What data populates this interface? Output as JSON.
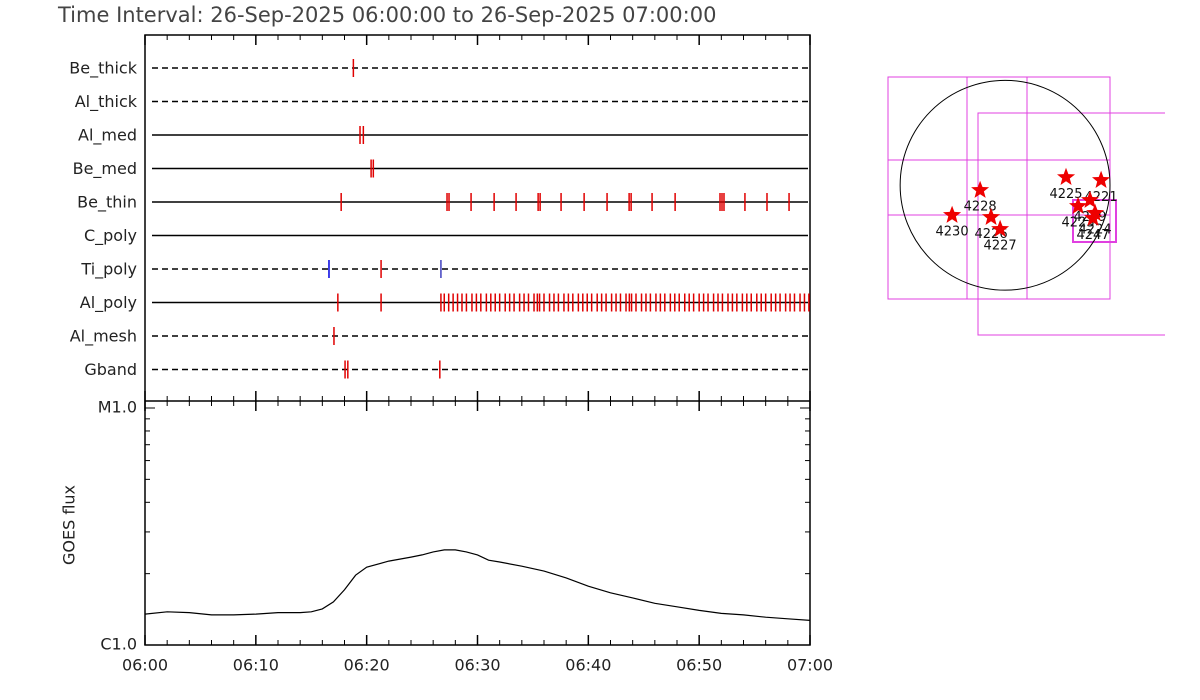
{
  "chart_data": [
    {
      "type": "event",
      "title": "Time Interval: 26-Sep-2025 06:00:00 to 26-Sep-2025 07:00:00",
      "color": "#e00000",
      "xlim": [
        0,
        60
      ],
      "rows": [
        {
          "name": "Be_thick",
          "dashed": true,
          "times": [
            18.8
          ]
        },
        {
          "name": "Al_thick",
          "dashed": true,
          "times": []
        },
        {
          "name": "Al_med",
          "dashed": false,
          "times": [
            19.4,
            19.7
          ]
        },
        {
          "name": "Be_med",
          "dashed": false,
          "times": [
            20.4,
            20.6
          ]
        },
        {
          "name": "Be_thin",
          "dashed": false,
          "times": [
            17.7,
            27.25,
            27.43,
            29.42,
            31.5,
            33.48,
            35.47,
            35.65,
            37.54,
            39.62,
            41.69,
            43.68,
            43.86,
            45.75,
            47.83,
            51.88,
            52.06,
            52.24,
            54.13,
            56.12,
            58.11
          ]
        },
        {
          "name": "C_poly",
          "dashed": false,
          "times": []
        },
        {
          "name": "Ti_poly",
          "dashed": true,
          "times": [
            16.6,
            21.3,
            26.7
          ],
          "colors": [
            "#0000e0",
            "#e00000",
            "#4040c0"
          ]
        },
        {
          "name": "Al_poly",
          "dashed": false,
          "times": [
            17.4,
            21.3,
            26.7,
            27.0,
            27.4,
            27.8,
            28.2,
            28.6,
            29.0,
            29.5,
            29.9,
            30.3,
            30.8,
            31.2,
            31.6,
            32.0,
            32.5,
            32.9,
            33.3,
            33.8,
            34.2,
            34.6,
            35.1,
            35.4,
            35.6,
            36.0,
            36.5,
            36.9,
            37.3,
            37.8,
            38.2,
            38.6,
            39.1,
            39.5,
            39.9,
            40.3,
            40.8,
            41.2,
            41.6,
            42.1,
            42.5,
            42.9,
            43.4,
            43.7,
            43.9,
            44.3,
            44.8,
            45.2,
            45.6,
            46.1,
            46.5,
            46.9,
            47.4,
            47.8,
            48.2,
            48.7,
            49.1,
            49.5,
            50.0,
            50.4,
            50.8,
            51.3,
            51.7,
            52.1,
            52.6,
            53.0,
            53.4,
            53.9,
            54.3,
            54.7,
            55.2,
            55.6,
            56.0,
            56.5,
            56.9,
            57.3,
            57.8,
            58.2,
            58.6,
            59.1,
            59.5,
            59.9
          ]
        },
        {
          "name": "Al_mesh",
          "dashed": true,
          "times": [
            17.05
          ]
        },
        {
          "name": "Gband",
          "dashed": true,
          "times": [
            18.05,
            18.3,
            26.6
          ]
        }
      ]
    },
    {
      "type": "line",
      "ylabel": "GOES flux",
      "log": true,
      "color": "#000000",
      "x": [
        0,
        2,
        4,
        6,
        8,
        10,
        12,
        14,
        15,
        16,
        17,
        18,
        19,
        20,
        22,
        24,
        25,
        26,
        27,
        28,
        29,
        30,
        31,
        32,
        34,
        36,
        38,
        40,
        42,
        44,
        46,
        48,
        50,
        52,
        54,
        56,
        58,
        60
      ],
      "values": [
        1.35e-06,
        1.38e-06,
        1.37e-06,
        1.34e-06,
        1.34e-06,
        1.35e-06,
        1.37e-06,
        1.37e-06,
        1.38e-06,
        1.42e-06,
        1.52e-06,
        1.71e-06,
        1.97e-06,
        2.13e-06,
        2.26e-06,
        2.35e-06,
        2.4e-06,
        2.47e-06,
        2.52e-06,
        2.52e-06,
        2.47e-06,
        2.4e-06,
        2.28e-06,
        2.24e-06,
        2.15e-06,
        2.05e-06,
        1.92e-06,
        1.77e-06,
        1.66e-06,
        1.58e-06,
        1.5e-06,
        1.45e-06,
        1.4e-06,
        1.36e-06,
        1.34e-06,
        1.31e-06,
        1.29e-06,
        1.27e-06
      ],
      "xlim": [
        0,
        60
      ],
      "xticks": [
        {
          "value": 0,
          "label": "06:00"
        },
        {
          "value": 10,
          "label": "06:10"
        },
        {
          "value": 20,
          "label": "06:20"
        },
        {
          "value": 30,
          "label": "06:30"
        },
        {
          "value": 40,
          "label": "06:40"
        },
        {
          "value": 50,
          "label": "06:50"
        },
        {
          "value": 60,
          "label": "07:00"
        }
      ],
      "minor_xticks": [
        2,
        4,
        6,
        8,
        12,
        14,
        16,
        18,
        22,
        24,
        26,
        28,
        32,
        34,
        36,
        38,
        42,
        44,
        46,
        48,
        52,
        54,
        56,
        58
      ],
      "ylim": [
        1e-06,
        1e-05
      ],
      "yticks": [
        {
          "value": 1e-06,
          "label": "C1.0"
        },
        {
          "value": 1e-05,
          "label": "M1.0"
        }
      ],
      "minor_yticks": [
        2e-06,
        3e-06,
        4e-06,
        5e-06,
        6e-06,
        7e-06,
        8e-06,
        9e-06
      ]
    }
  ],
  "map": {
    "xlim": [
      -1060,
      950
    ],
    "ylim": [
      -1030,
      980
    ],
    "radius": 950,
    "color": "#ee0000",
    "regions": [
      {
        "label": "4228",
        "x": -226,
        "y": -45
      },
      {
        "label": "4230",
        "x": -480,
        "y": -271
      },
      {
        "label": "4226",
        "x": -127,
        "y": -290
      },
      {
        "label": "4227",
        "x": -45,
        "y": -398
      },
      {
        "label": "4225",
        "x": 552,
        "y": 72
      },
      {
        "label": "4221",
        "x": 869,
        "y": 45
      },
      {
        "label": "4223",
        "x": 661,
        "y": -190
      },
      {
        "label": "4229",
        "x": 769,
        "y": -136
      },
      {
        "label": "4224",
        "x": 815,
        "y": -253
      },
      {
        "label": "4247",
        "x": 796,
        "y": -299
      }
    ]
  }
}
